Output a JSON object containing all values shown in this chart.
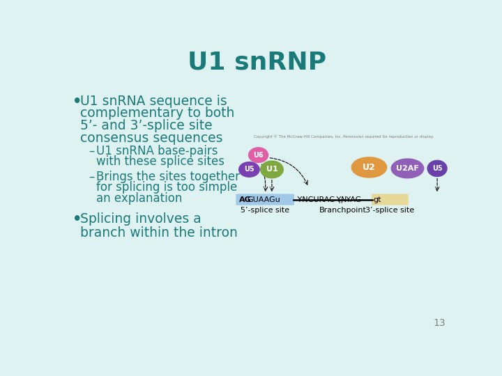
{
  "title": "U1 snRNP",
  "title_color": "#1a7a7a",
  "background_color": "#dff2f2",
  "bullet1_lines": [
    "U1 snRNA sequence is",
    "complementary to both",
    "5’- and 3’-splice site",
    "consensus sequences"
  ],
  "sub1_lines": [
    "U1 snRNA base-pairs",
    "with these splice sites"
  ],
  "sub2_lines": [
    "Brings the sites together",
    "for splicing is too simple",
    "an explanation"
  ],
  "bullet2_lines": [
    "Splicing involves a",
    "branch within the intron"
  ],
  "text_color": "#1a7a7a",
  "page_number": "13",
  "diagram": {
    "copyright": "Copyright © The McGraw-Hill Companies, Inc. Permission required for reproduction or display.",
    "left_bar_color": "#a0c8e8",
    "right_bar_color": "#e8d898",
    "seq_left": "AGGUAAGu",
    "seq_right": "YNCURAC-Y",
    "seq_right2": "n",
    "seq_right3": "NYAGgt",
    "label_left": "5’-splice site",
    "label_right1": "Branchpoint",
    "label_right2": "3’-splice site",
    "u6_color": "#e060a8",
    "u5l_color": "#7840b0",
    "u1_color": "#80a840",
    "u2_color": "#e09840",
    "u2af_color": "#9060b8",
    "u5r_color": "#6840a8"
  }
}
